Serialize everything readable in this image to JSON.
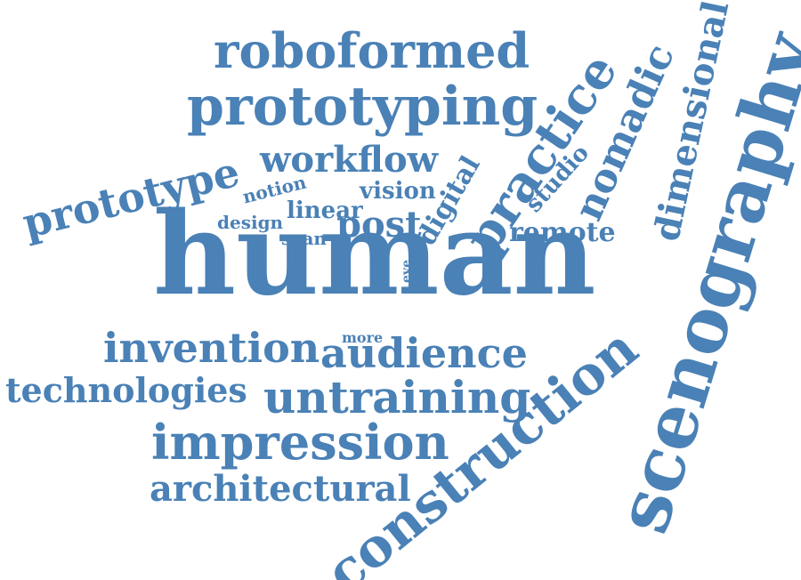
{
  "cloud": {
    "color": "#4a81b6",
    "words": {
      "human": "human",
      "scenography": "scenography",
      "construction": "construction",
      "roboformed": "roboformed",
      "prototyping": "prototyping",
      "prototype": "prototype",
      "workflow": "workflow",
      "invention": "invention",
      "audience": "audience",
      "technologies": "technologies",
      "untraining": "untraining",
      "impression": "impression",
      "architectural": "architectural",
      "practice": "practice",
      "nomadic": "nomadic",
      "dimensional": "dimensional",
      "digital": "digital",
      "studio": "studio",
      "remote": "remote",
      "post": "post",
      "vision": "vision",
      "linear": "linear",
      "design": "design",
      "scan": "scan",
      "notion": "notion",
      "more": "more",
      "eye": "eye"
    }
  }
}
